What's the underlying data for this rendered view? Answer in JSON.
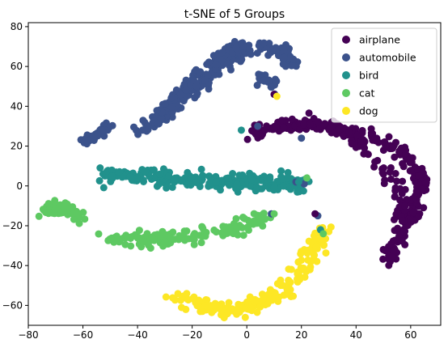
{
  "chart_data": {
    "type": "scatter",
    "title": "t-SNE of 5 Groups",
    "xlabel": "",
    "ylabel": "",
    "xlim": [
      -80,
      71
    ],
    "ylim": [
      -70,
      82
    ],
    "xticks": [
      -80,
      -60,
      -40,
      -20,
      0,
      20,
      40,
      60
    ],
    "yticks": [
      -60,
      -40,
      -20,
      0,
      20,
      40,
      60,
      80
    ],
    "grid": false,
    "legend_position": "top-right",
    "series": [
      {
        "name": "airplane",
        "color": "#440154"
      },
      {
        "name": "automobile",
        "color": "#3b528b"
      },
      {
        "name": "bird",
        "color": "#21918c"
      },
      {
        "name": "cat",
        "color": "#5ec962"
      },
      {
        "name": "dog",
        "color": "#fde725"
      }
    ],
    "clusters": [
      {
        "series": "airplane",
        "count": 190,
        "spread": 1.5,
        "path": [
          [
            2,
            27
          ],
          [
            12,
            30
          ],
          [
            25,
            31
          ],
          [
            33,
            29
          ],
          [
            40,
            25
          ],
          [
            43,
            20
          ]
        ]
      },
      {
        "series": "airplane",
        "count": 150,
        "spread": 1.4,
        "path": [
          [
            44,
            27
          ],
          [
            52,
            21
          ],
          [
            58,
            15
          ],
          [
            62,
            8
          ],
          [
            64,
            0
          ],
          [
            62,
            -10
          ],
          [
            58,
            -20
          ],
          [
            53,
            -32
          ],
          [
            52,
            -38
          ]
        ]
      },
      {
        "series": "airplane",
        "count": 50,
        "spread": 1.3,
        "path": [
          [
            43,
            16
          ],
          [
            50,
            10
          ],
          [
            56,
            0
          ],
          [
            57,
            -12
          ],
          [
            55,
            -24
          ]
        ]
      },
      {
        "series": "automobile",
        "count": 200,
        "spread": 1.5,
        "path": [
          [
            -35,
            30
          ],
          [
            -28,
            38
          ],
          [
            -20,
            48
          ],
          [
            -10,
            60
          ],
          [
            0,
            69
          ],
          [
            8,
            70
          ],
          [
            14,
            67
          ],
          [
            16,
            61
          ]
        ]
      },
      {
        "series": "automobile",
        "count": 130,
        "spread": 1.5,
        "path": [
          [
            -40,
            27
          ],
          [
            -32,
            35
          ],
          [
            -25,
            45
          ],
          [
            -17,
            56
          ],
          [
            -9,
            65
          ],
          [
            -2,
            72
          ]
        ]
      },
      {
        "series": "automobile",
        "count": 40,
        "spread": 1.2,
        "path": [
          [
            -60,
            22
          ],
          [
            -55,
            26
          ],
          [
            -50,
            30
          ]
        ]
      },
      {
        "series": "automobile",
        "count": 20,
        "spread": 1.5,
        "path": [
          [
            5,
            55
          ],
          [
            9,
            50
          ],
          [
            10,
            46
          ]
        ]
      },
      {
        "series": "bird",
        "count": 320,
        "spread": 1.8,
        "path": [
          [
            -52,
            6
          ],
          [
            -40,
            5
          ],
          [
            -25,
            3
          ],
          [
            -10,
            2
          ],
          [
            5,
            2
          ],
          [
            22,
            1
          ]
        ]
      },
      {
        "series": "cat",
        "count": 160,
        "spread": 1.8,
        "path": [
          [
            -50,
            -27
          ],
          [
            -40,
            -27
          ],
          [
            -25,
            -27
          ],
          [
            -10,
            -23
          ],
          [
            0,
            -19
          ],
          [
            8,
            -15
          ]
        ]
      },
      {
        "series": "cat",
        "count": 60,
        "spread": 1.6,
        "path": [
          [
            -74,
            -14
          ],
          [
            -70,
            -11
          ],
          [
            -65,
            -12
          ],
          [
            -61,
            -15
          ]
        ]
      },
      {
        "series": "dog",
        "count": 190,
        "spread": 1.8,
        "path": [
          [
            -27,
            -55
          ],
          [
            -15,
            -60
          ],
          [
            -3,
            -62
          ],
          [
            7,
            -58
          ],
          [
            15,
            -50
          ],
          [
            21,
            -40
          ],
          [
            26,
            -28
          ],
          [
            29,
            -18
          ]
        ]
      }
    ],
    "stray_points": [
      {
        "series": "automobile",
        "x": 20,
        "y": 24
      },
      {
        "series": "automobile",
        "x": 4,
        "y": 30
      },
      {
        "series": "automobile",
        "x": 18,
        "y": 2
      },
      {
        "series": "automobile",
        "x": 21,
        "y": 1
      },
      {
        "series": "automobile",
        "x": 9,
        "y": -14
      },
      {
        "series": "automobile",
        "x": 26,
        "y": -15
      },
      {
        "series": "airplane",
        "x": 25,
        "y": -14
      },
      {
        "series": "airplane",
        "x": 10,
        "y": 46
      },
      {
        "series": "bird",
        "x": -2,
        "y": 28
      },
      {
        "series": "bird",
        "x": 19,
        "y": 2
      },
      {
        "series": "bird",
        "x": 27,
        "y": -22
      },
      {
        "series": "cat",
        "x": 22,
        "y": 4
      },
      {
        "series": "cat",
        "x": 28,
        "y": -24
      },
      {
        "series": "cat",
        "x": 10,
        "y": -14
      },
      {
        "series": "dog",
        "x": 11,
        "y": 45
      },
      {
        "series": "dog",
        "x": 9,
        "y": -53
      }
    ]
  }
}
